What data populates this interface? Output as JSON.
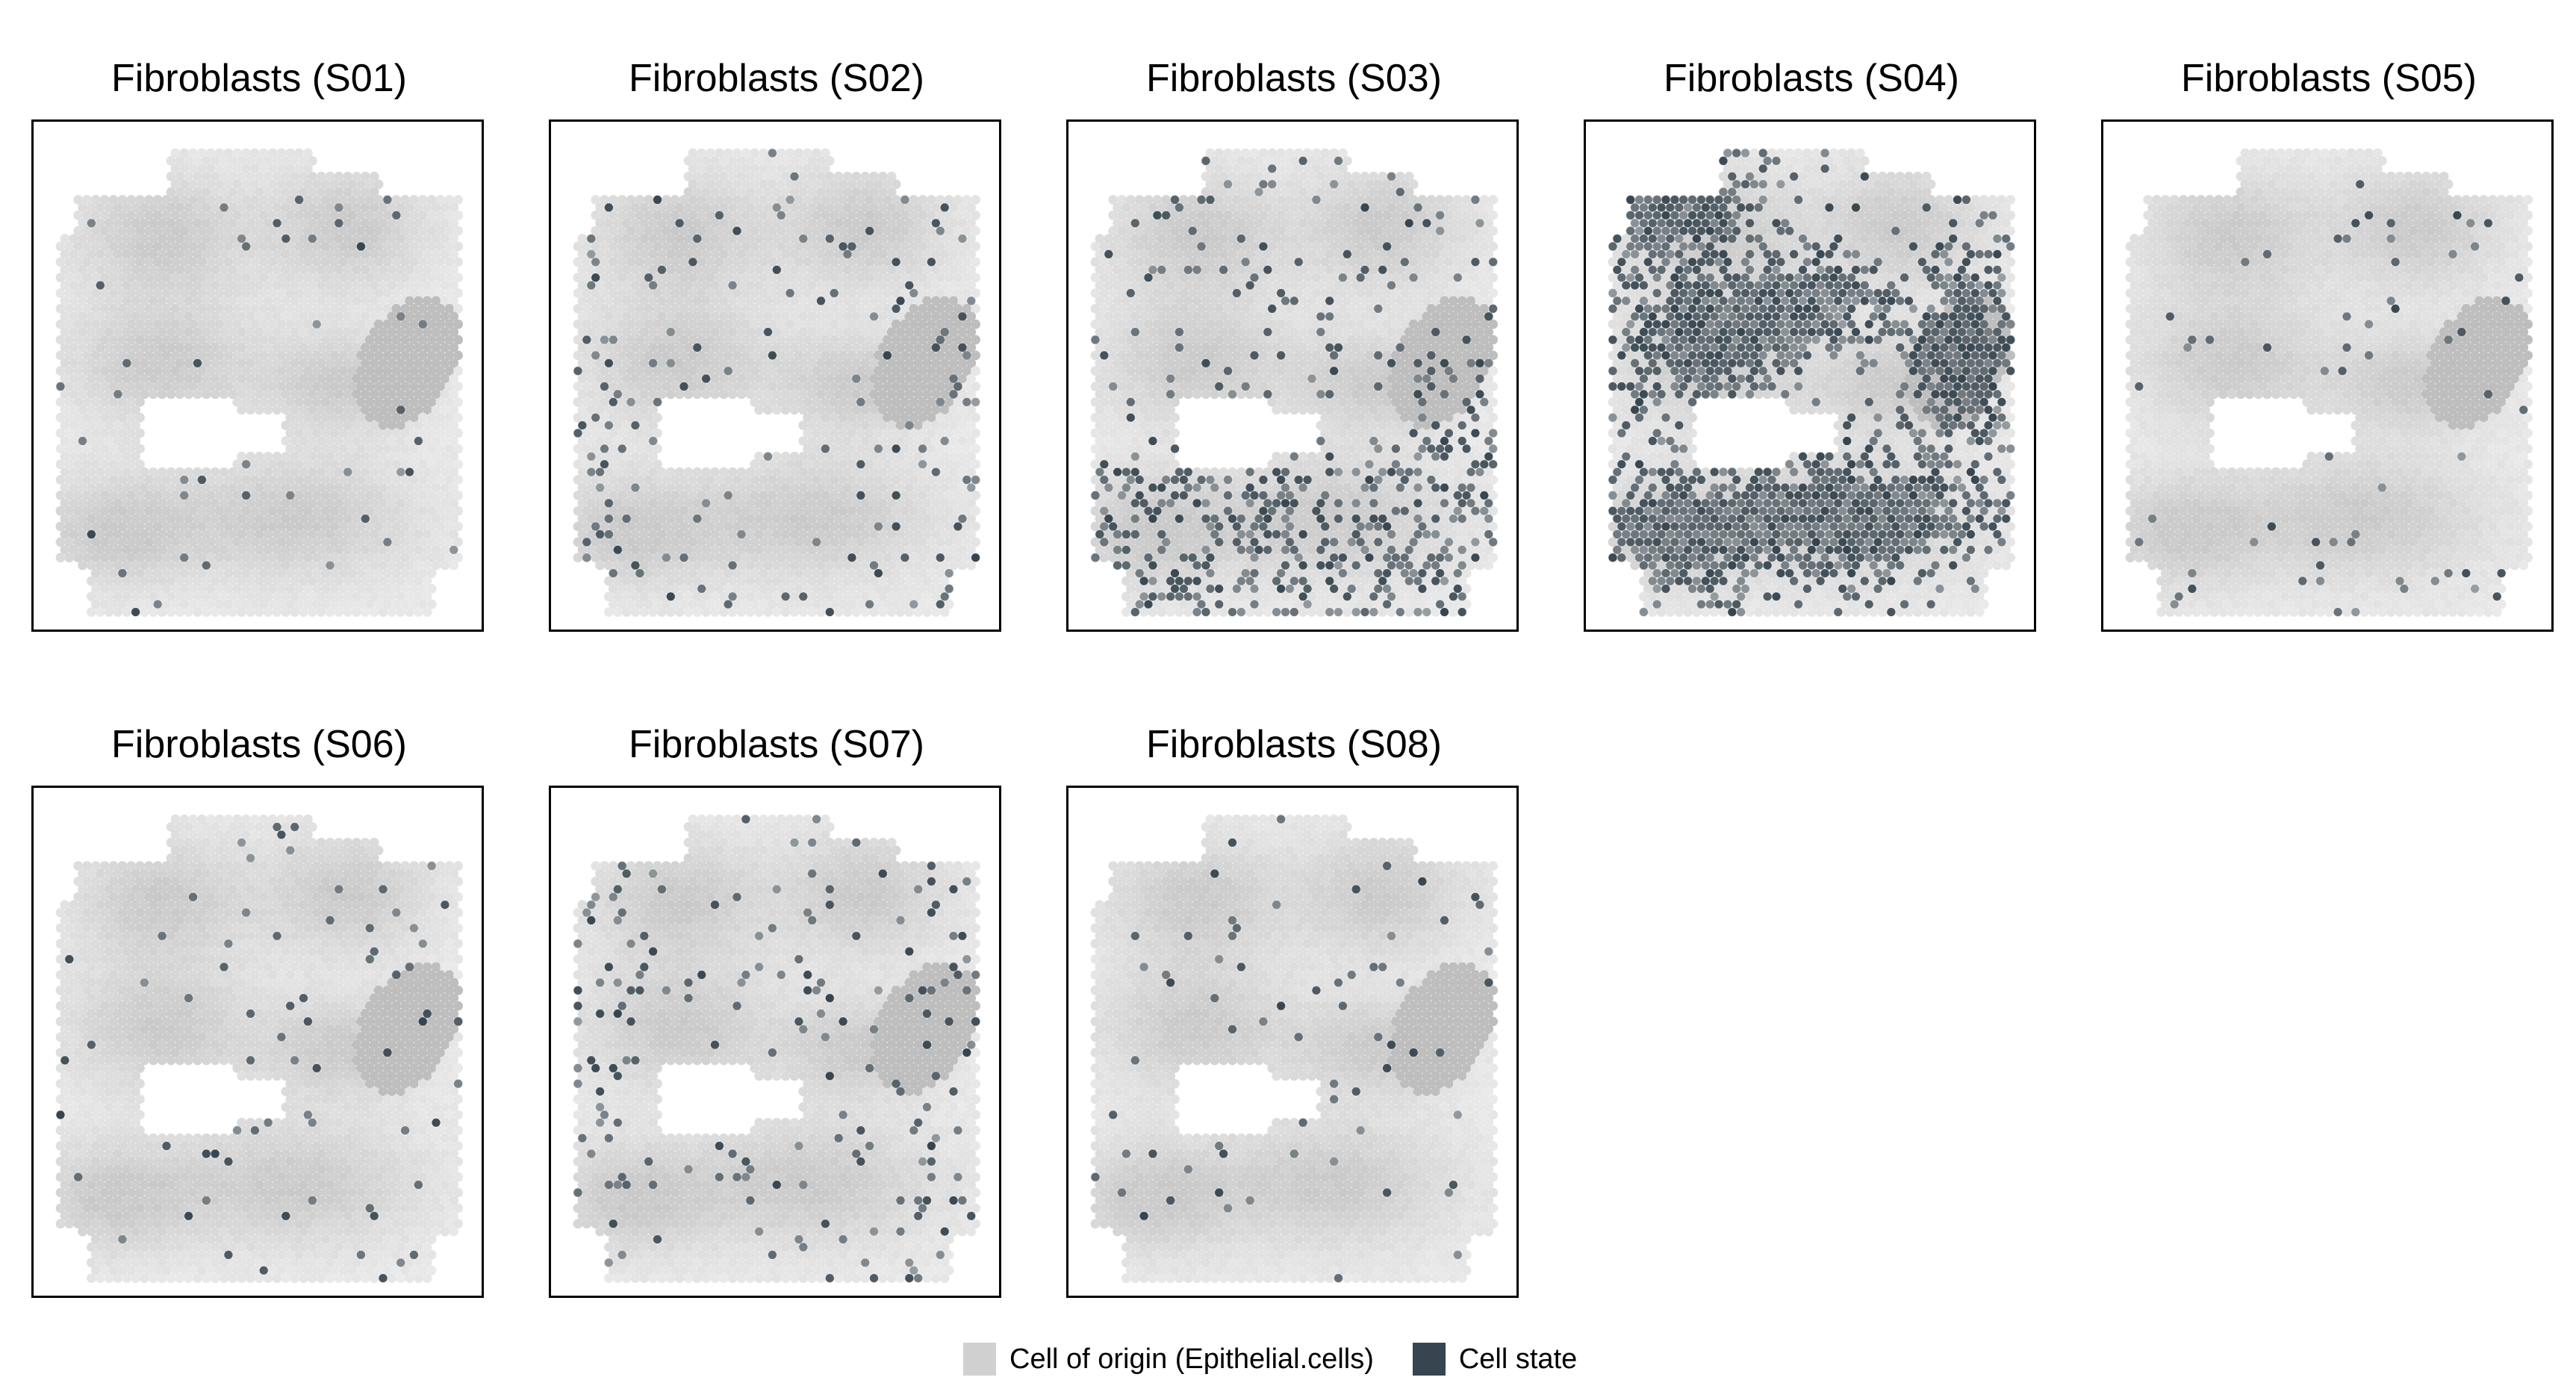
{
  "chart_data": {
    "type": "scatter",
    "panels": [
      {
        "title": "Fibroblasts (S01)",
        "state_density": 0.02,
        "state_pattern": "sparse"
      },
      {
        "title": "Fibroblasts (S02)",
        "state_density": 0.05,
        "state_pattern": "sparse-edges"
      },
      {
        "title": "Fibroblasts (S03)",
        "state_density": 0.12,
        "state_pattern": "bottom-heavy"
      },
      {
        "title": "Fibroblasts (S04)",
        "state_density": 0.55,
        "state_pattern": "dense-clusters"
      },
      {
        "title": "Fibroblasts (S05)",
        "state_density": 0.025,
        "state_pattern": "sparse"
      },
      {
        "title": "Fibroblasts (S06)",
        "state_density": 0.03,
        "state_pattern": "sparse"
      },
      {
        "title": "Fibroblasts (S07)",
        "state_density": 0.07,
        "state_pattern": "sparse-edges"
      },
      {
        "title": "Fibroblasts (S08)",
        "state_density": 0.025,
        "state_pattern": "sparse"
      }
    ],
    "legend": [
      {
        "label": "Cell of origin (Epithelial.cells)",
        "color": "#d0d0d0"
      },
      {
        "label": "Cell state",
        "color": "#36454f"
      }
    ],
    "colors": {
      "origin": "#d0d0d0",
      "state": "#36454f",
      "background": "#ffffff"
    },
    "legend_placement": "bottom",
    "grid": false
  }
}
